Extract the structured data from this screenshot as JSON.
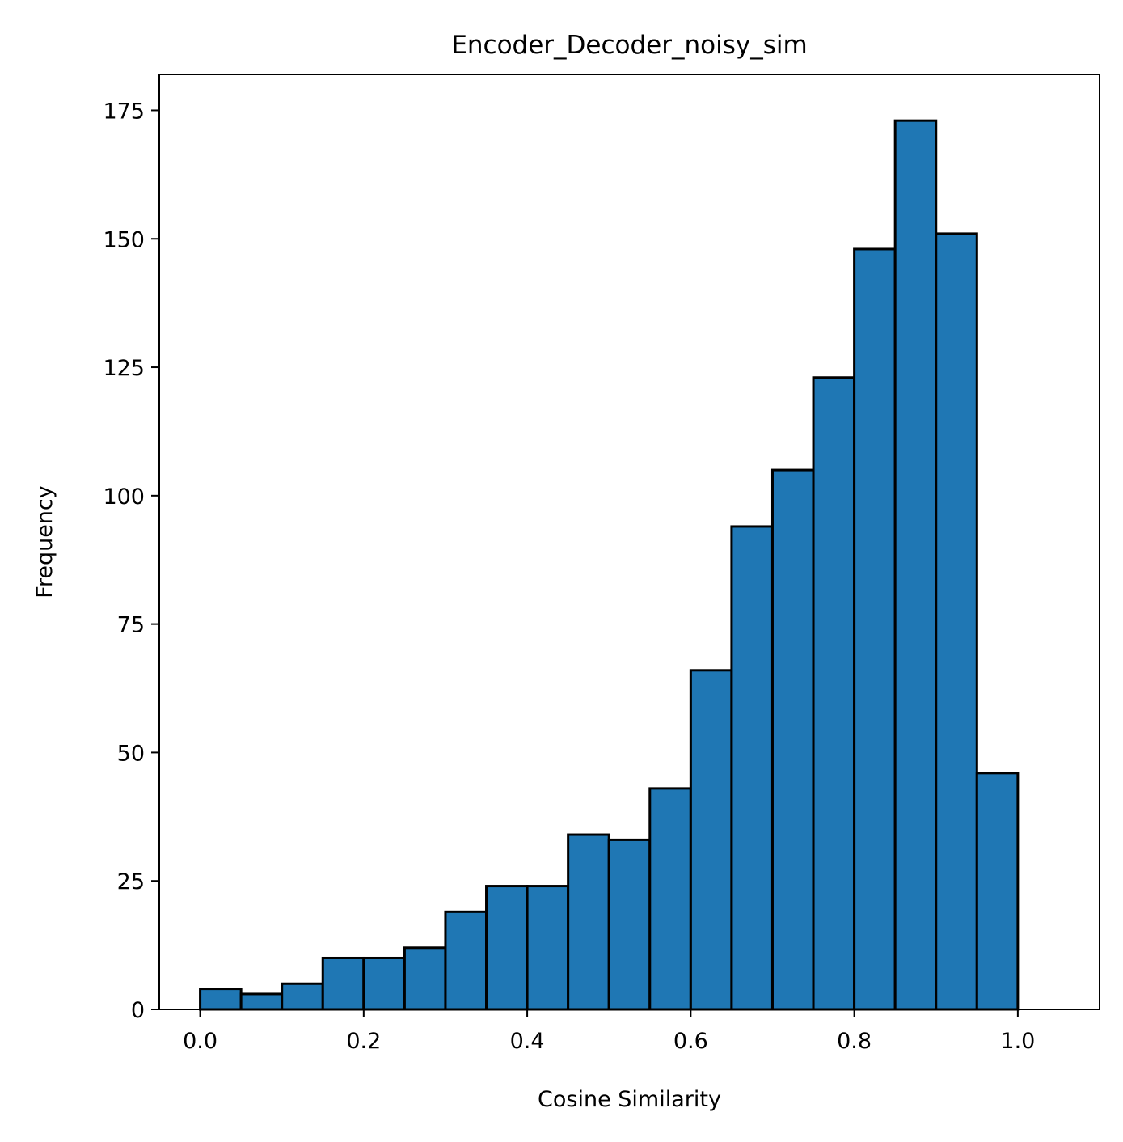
{
  "chart_data": {
    "type": "bar",
    "title": "Encoder_Decoder_noisy_sim",
    "xlabel": "Cosine Similarity",
    "ylabel": "Frequency",
    "xlim": [
      -0.05,
      1.1
    ],
    "ylim": [
      0,
      182
    ],
    "bin_width": 0.05,
    "bin_starts": [
      0.0,
      0.05,
      0.1,
      0.15,
      0.2,
      0.25,
      0.3,
      0.35,
      0.4,
      0.45,
      0.5,
      0.55,
      0.6,
      0.65,
      0.7,
      0.75,
      0.8,
      0.85,
      0.9,
      0.95,
      1.0
    ],
    "values": [
      4,
      3,
      5,
      10,
      10,
      12,
      19,
      24,
      24,
      34,
      33,
      43,
      66,
      94,
      105,
      123,
      148,
      173,
      151,
      46,
      0
    ],
    "x_ticks": [
      "0.0",
      "0.2",
      "0.4",
      "0.6",
      "0.8",
      "1.0"
    ],
    "x_tick_values": [
      0.0,
      0.2,
      0.4,
      0.6,
      0.8,
      1.0
    ],
    "y_ticks": [
      "0",
      "25",
      "50",
      "75",
      "100",
      "125",
      "150",
      "175"
    ],
    "y_tick_values": [
      0,
      25,
      50,
      75,
      100,
      125,
      150,
      175
    ],
    "grid": false,
    "legend": "none",
    "bar_color": "#1f77b4",
    "edge_color": "#000000"
  }
}
